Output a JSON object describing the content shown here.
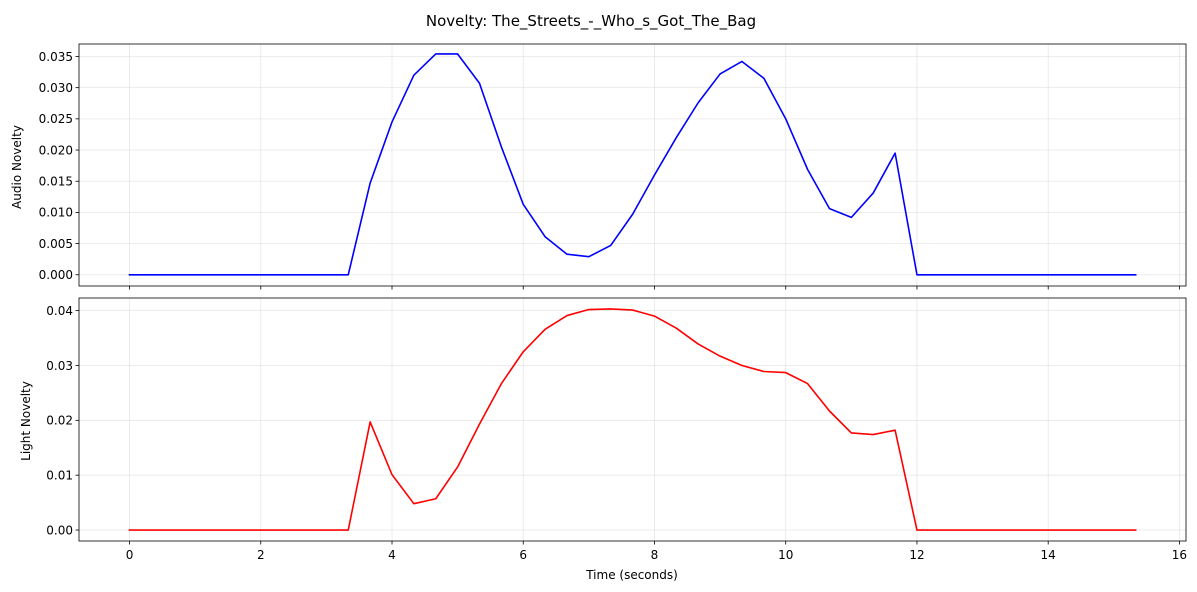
{
  "figure": {
    "title": "Novelty: The_Streets_-_Who_s_Got_The_Bag"
  },
  "chart_data": [
    {
      "type": "line",
      "ylabel": "Audio Novelty",
      "xlabel": "",
      "xlim": [
        -0.77,
        16.1
      ],
      "ylim": [
        -0.0018,
        0.037
      ],
      "xticks": [
        0,
        2,
        4,
        6,
        8,
        10,
        12,
        14,
        16
      ],
      "show_xtick_labels": false,
      "yticks": [
        0.0,
        0.005,
        0.01,
        0.015,
        0.02,
        0.025,
        0.03,
        0.035
      ],
      "ytick_labels": [
        "0.000",
        "0.005",
        "0.010",
        "0.015",
        "0.020",
        "0.025",
        "0.030",
        "0.035"
      ],
      "grid": true,
      "series": [
        {
          "color": "#0000ff",
          "x": [
            0,
            0.333,
            0.667,
            1,
            1.333,
            1.667,
            2,
            2.333,
            2.667,
            3,
            3.333,
            3.667,
            4,
            4.333,
            4.667,
            5,
            5.333,
            5.667,
            6,
            6.333,
            6.667,
            7,
            7.333,
            7.667,
            8,
            8.333,
            8.667,
            9,
            9.333,
            9.667,
            10,
            10.333,
            10.667,
            11,
            11.333,
            11.667,
            12,
            12.333,
            12.667,
            13,
            13.333,
            13.667,
            14,
            14.333,
            14.667,
            15,
            15.333
          ],
          "y": [
            0,
            0,
            0,
            0,
            0,
            0,
            0,
            0,
            0,
            0,
            0,
            0.0147,
            0.0245,
            0.032,
            0.0354,
            0.0354,
            0.0307,
            0.0205,
            0.0113,
            0.0061,
            0.0033,
            0.0029,
            0.0047,
            0.0097,
            0.016,
            0.022,
            0.0276,
            0.0322,
            0.0342,
            0.0315,
            0.025,
            0.0169,
            0.0106,
            0.0092,
            0.0131,
            0.0195,
            0,
            0,
            0,
            0,
            0,
            0,
            0,
            0,
            0,
            0,
            0
          ]
        }
      ]
    },
    {
      "type": "line",
      "ylabel": "Light Novelty",
      "xlabel": "Time (seconds)",
      "xlim": [
        -0.77,
        16.1
      ],
      "ylim": [
        -0.002,
        0.0423
      ],
      "xticks": [
        0,
        2,
        4,
        6,
        8,
        10,
        12,
        14,
        16
      ],
      "xtick_labels": [
        "0",
        "2",
        "4",
        "6",
        "8",
        "10",
        "12",
        "14",
        "16"
      ],
      "show_xtick_labels": true,
      "yticks": [
        0.0,
        0.01,
        0.02,
        0.03,
        0.04
      ],
      "ytick_labels": [
        "0.00",
        "0.01",
        "0.02",
        "0.03",
        "0.04"
      ],
      "grid": true,
      "series": [
        {
          "color": "#ff0000",
          "x": [
            0,
            0.333,
            0.667,
            1,
            1.333,
            1.667,
            2,
            2.333,
            2.667,
            3,
            3.333,
            3.667,
            4,
            4.333,
            4.667,
            5,
            5.333,
            5.667,
            6,
            6.333,
            6.667,
            7,
            7.333,
            7.667,
            8,
            8.333,
            8.667,
            9,
            9.333,
            9.667,
            10,
            10.333,
            10.667,
            11,
            11.333,
            11.667,
            12,
            12.333,
            12.667,
            13,
            13.333,
            13.667,
            14,
            14.333,
            14.667,
            15,
            15.333
          ],
          "y": [
            0,
            0,
            0,
            0,
            0,
            0,
            0,
            0,
            0,
            0,
            0,
            0.0197,
            0.0101,
            0.0048,
            0.0057,
            0.0115,
            0.0193,
            0.0267,
            0.0325,
            0.0366,
            0.0391,
            0.0402,
            0.0403,
            0.0401,
            0.039,
            0.0368,
            0.0339,
            0.0317,
            0.03,
            0.0289,
            0.0287,
            0.0267,
            0.0217,
            0.0177,
            0.0174,
            0.0182,
            0,
            0,
            0,
            0,
            0,
            0,
            0,
            0,
            0,
            0,
            0
          ]
        }
      ]
    }
  ]
}
